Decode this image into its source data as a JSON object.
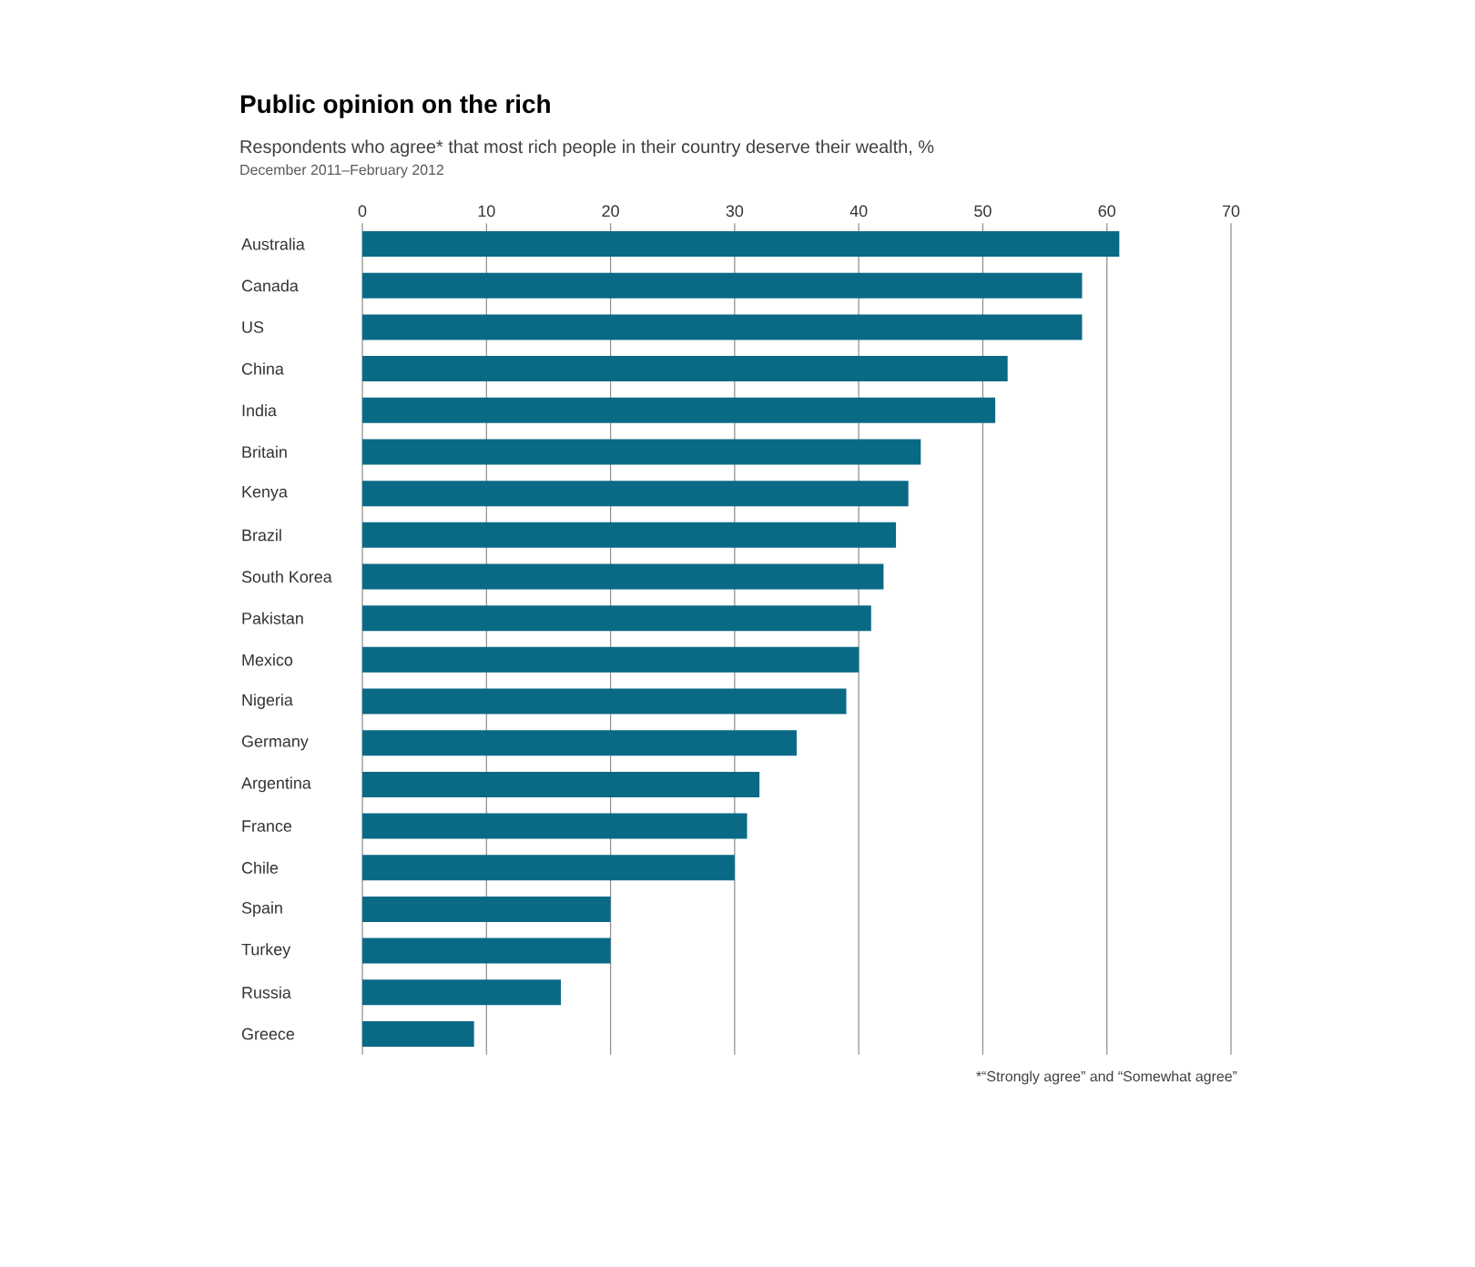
{
  "chart_data": {
    "type": "bar",
    "orientation": "horizontal",
    "title": "Public opinion on the rich",
    "subtitle": "Respondents who agree* that most rich people in their country deserve their wealth, %",
    "annotations": [
      "December 2011–February 2012",
      "*“Strongly agree” and “Somewhat agree”"
    ],
    "categories": [
      "Australia",
      "Canada",
      "US",
      "China",
      "India",
      "Britain",
      "Kenya",
      "Brazil",
      "South Korea",
      "Pakistan",
      "Mexico",
      "Nigeria",
      "Germany",
      "Argentina",
      "France",
      "Chile",
      "Spain",
      "Turkey",
      "Russia",
      "Greece"
    ],
    "values": [
      61,
      58,
      58,
      52,
      51,
      45,
      44,
      43,
      42,
      41,
      40,
      39,
      35,
      32,
      31,
      30,
      20,
      20,
      16,
      9
    ],
    "color": "#0a6a86",
    "xlim": [
      0,
      70
    ],
    "xticks": [
      0,
      10,
      20,
      30,
      40,
      50,
      60,
      70
    ],
    "grid": "x"
  }
}
